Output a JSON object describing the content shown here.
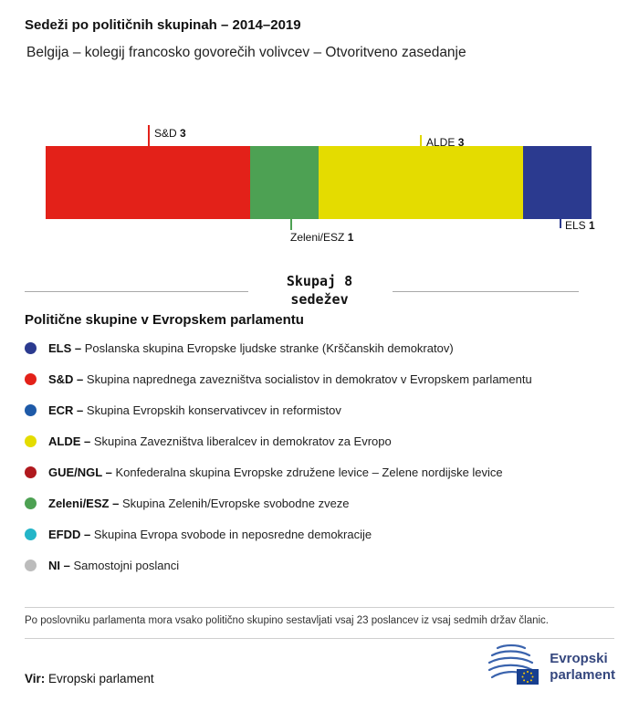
{
  "header": {
    "title": "Sedeži po političnih skupinah – 2014–2019",
    "subtitle": "Belgija – kolegij francosko govorečih volivcev – Otvoritveno zasedanje"
  },
  "chart_data": {
    "type": "bar",
    "orientation": "horizontal-stacked",
    "title": "Sedeži po političnih skupinah – 2014–2019",
    "total_seats": 8,
    "summary_line1": "Skupaj 8",
    "summary_line2": "sedežev",
    "segments": [
      {
        "group": "S&D",
        "seats": 3,
        "color": "#e32119",
        "label_position": "top"
      },
      {
        "group": "Zeleni/ESZ",
        "seats": 1,
        "color": "#4da153",
        "label_position": "bottom"
      },
      {
        "group": "ALDE",
        "seats": 3,
        "color": "#e4dc00",
        "label_position": "top"
      },
      {
        "group": "ELS",
        "seats": 1,
        "color": "#2b3a8f",
        "label_position": "bottom"
      }
    ]
  },
  "legend": {
    "heading": "Politične skupine v Evropskem parlamentu",
    "items": [
      {
        "abbr": "ELS –",
        "desc": "Poslanska skupina Evropske ljudske stranke (Krščanskih demokratov)",
        "color": "#2b3a8f"
      },
      {
        "abbr": "S&D –",
        "desc": "Skupina naprednega zavezništva socialistov in demokratov v Evropskem parlamentu",
        "color": "#e32119"
      },
      {
        "abbr": "ECR –",
        "desc": "Skupina Evropskih konservativcev in reformistov",
        "color": "#1e5aa8"
      },
      {
        "abbr": "ALDE –",
        "desc": "Skupina Zavezništva liberalcev in demokratov za Evropo",
        "color": "#e4dc00"
      },
      {
        "abbr": "GUE/NGL –",
        "desc": "Konfederalna skupina Evropske združene levice – Zelene nordijske levice",
        "color": "#b0191e"
      },
      {
        "abbr": "Zeleni/ESZ –",
        "desc": "Skupina Zelenih/Evropske svobodne zveze",
        "color": "#4da153"
      },
      {
        "abbr": "EFDD –",
        "desc": "Skupina Evropa svobode in neposredne demokracije",
        "color": "#24b5c8"
      },
      {
        "abbr": "NI –",
        "desc": "Samostojni poslanci",
        "color": "#bcbcbc"
      }
    ]
  },
  "footnote": "Po poslovniku parlamenta mora vsako politično skupino sestavljati vsaj 23 poslancev iz vsaj sedmih držav članic.",
  "source": {
    "label": "Vir:",
    "value": "Evropski parlament"
  },
  "logo": {
    "line1": "Evropski",
    "line2": "parlament"
  }
}
